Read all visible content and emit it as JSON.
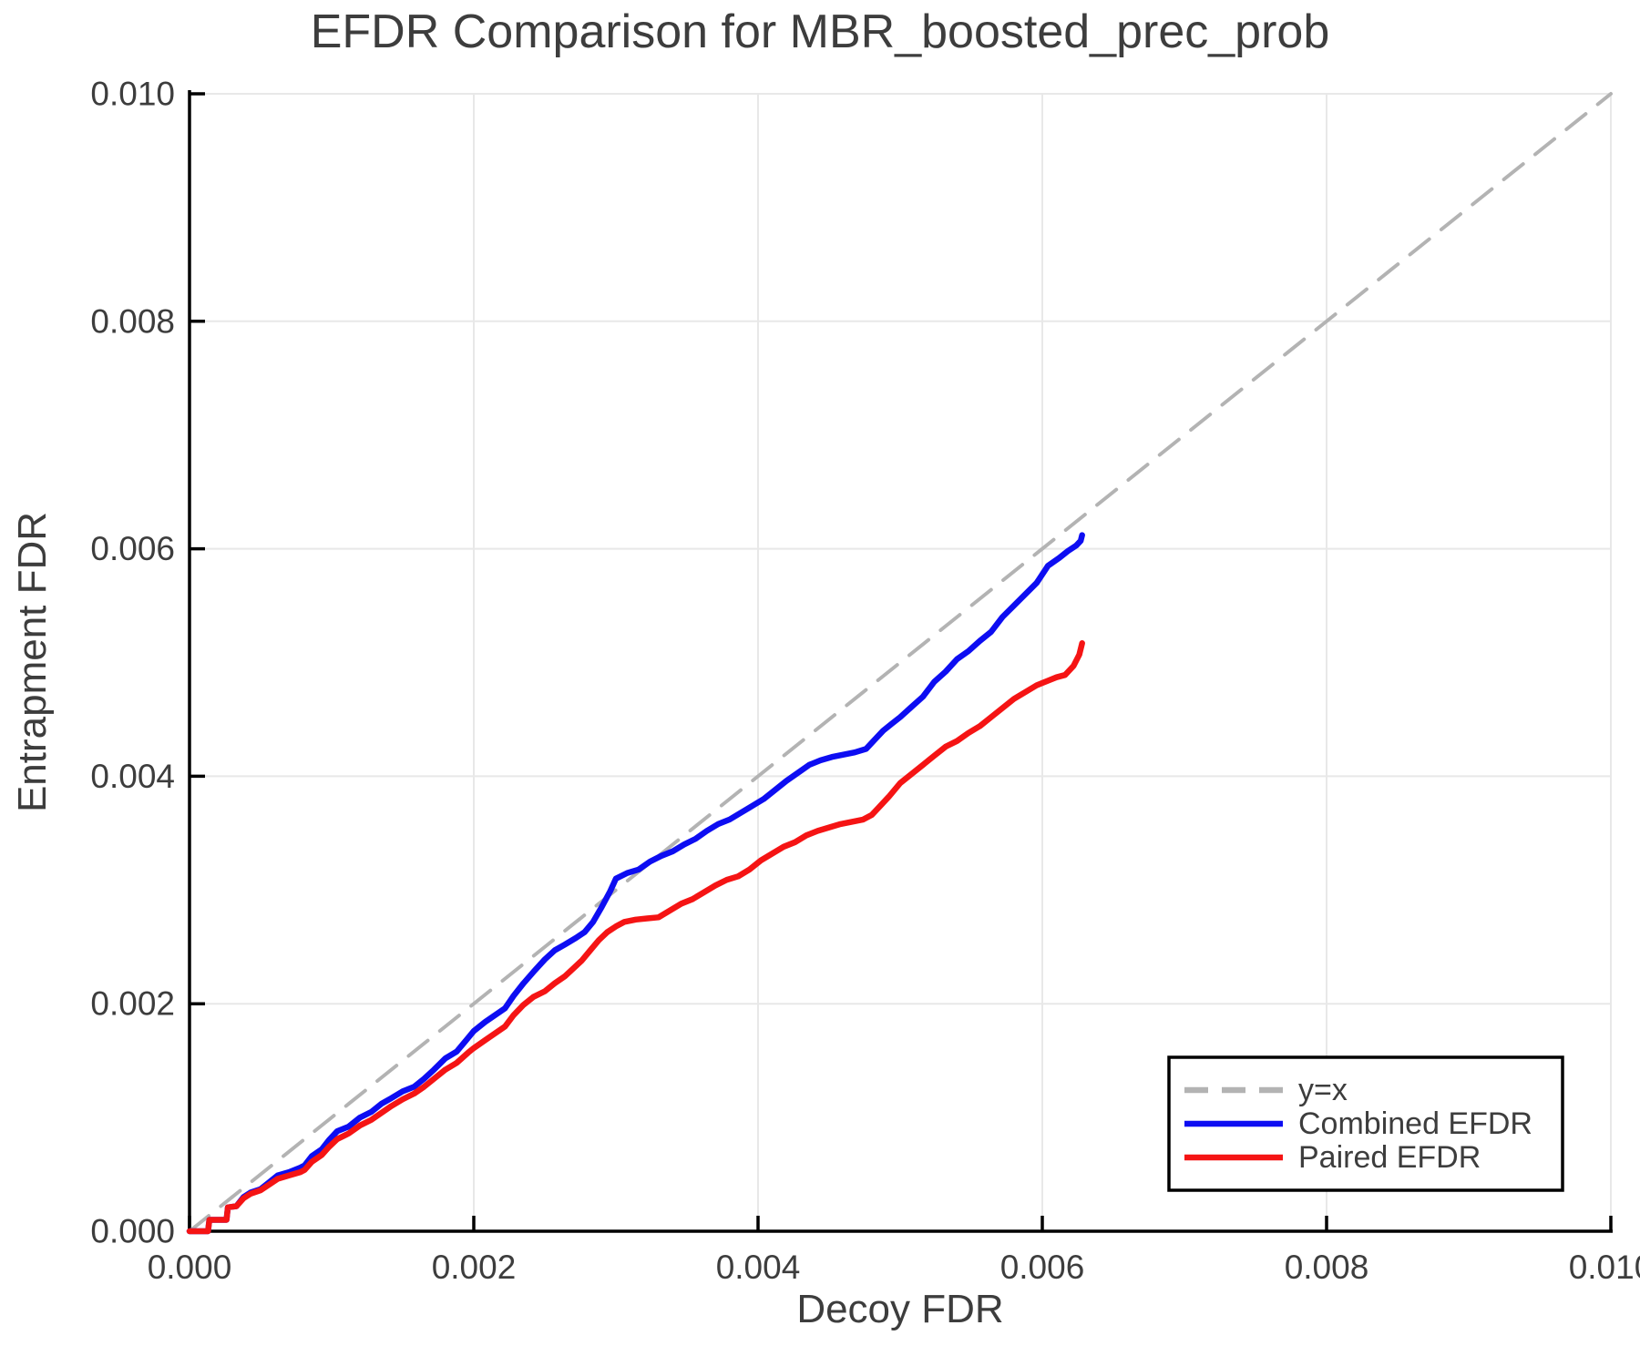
{
  "chart_data": {
    "type": "line",
    "title": "EFDR Comparison for MBR_boosted_prec_prob",
    "xlabel": "Decoy FDR",
    "ylabel": "Entrapment FDR",
    "xlim": [
      0.0,
      0.01
    ],
    "ylim": [
      0.0,
      0.01
    ],
    "x_ticks": [
      0.0,
      0.002,
      0.004,
      0.006,
      0.008,
      0.01
    ],
    "y_ticks": [
      0.0,
      0.002,
      0.004,
      0.006,
      0.008,
      0.01
    ],
    "tick_decimals": 3,
    "grid": true,
    "colors": {
      "grid": "#e8e8e8",
      "spine": "#000000",
      "text": "#3d3d3d"
    },
    "legend": {
      "position": "lower right"
    },
    "series": [
      {
        "name": "y=x",
        "style": "dashed",
        "color": "#b3b3b3",
        "points": [
          [
            0.0,
            0.0
          ],
          [
            0.01,
            0.01
          ]
        ]
      },
      {
        "name": "Combined EFDR",
        "style": "solid",
        "color": "#0d0df2",
        "points": [
          [
            0.0,
            0.0
          ],
          [
            0.00013,
            0.0
          ],
          [
            0.00014,
            0.0001
          ],
          [
            0.00026,
            0.0001
          ],
          [
            0.00027,
            0.00021
          ],
          [
            0.00033,
            0.00022
          ],
          [
            0.00038,
            0.0003
          ],
          [
            0.00043,
            0.00034
          ],
          [
            0.0005,
            0.00037
          ],
          [
            0.00056,
            0.00043
          ],
          [
            0.00062,
            0.00049
          ],
          [
            0.0007,
            0.00052
          ],
          [
            0.00078,
            0.00056
          ],
          [
            0.00081,
            0.00058
          ],
          [
            0.00086,
            0.00066
          ],
          [
            0.00093,
            0.00072
          ],
          [
            0.00098,
            0.0008
          ],
          [
            0.00104,
            0.00088
          ],
          [
            0.00112,
            0.00092
          ],
          [
            0.0012,
            0.001
          ],
          [
            0.00128,
            0.00105
          ],
          [
            0.00135,
            0.00112
          ],
          [
            0.00142,
            0.00117
          ],
          [
            0.0015,
            0.00123
          ],
          [
            0.00158,
            0.00127
          ],
          [
            0.00165,
            0.00134
          ],
          [
            0.00172,
            0.00142
          ],
          [
            0.0018,
            0.00152
          ],
          [
            0.00188,
            0.00158
          ],
          [
            0.00196,
            0.0017
          ],
          [
            0.002,
            0.00176
          ],
          [
            0.00208,
            0.00184
          ],
          [
            0.00215,
            0.0019
          ],
          [
            0.00222,
            0.00196
          ],
          [
            0.00228,
            0.00207
          ],
          [
            0.00235,
            0.00218
          ],
          [
            0.00242,
            0.00228
          ],
          [
            0.0025,
            0.00239
          ],
          [
            0.00257,
            0.00247
          ],
          [
            0.00264,
            0.00252
          ],
          [
            0.00272,
            0.00258
          ],
          [
            0.00278,
            0.00263
          ],
          [
            0.00284,
            0.00272
          ],
          [
            0.0029,
            0.00285
          ],
          [
            0.00296,
            0.00299
          ],
          [
            0.003,
            0.0031
          ],
          [
            0.00308,
            0.00315
          ],
          [
            0.00316,
            0.00318
          ],
          [
            0.00324,
            0.00325
          ],
          [
            0.00332,
            0.0033
          ],
          [
            0.0034,
            0.00334
          ],
          [
            0.00348,
            0.0034
          ],
          [
            0.00356,
            0.00345
          ],
          [
            0.00364,
            0.00352
          ],
          [
            0.00372,
            0.00358
          ],
          [
            0.0038,
            0.00362
          ],
          [
            0.00388,
            0.00368
          ],
          [
            0.00396,
            0.00374
          ],
          [
            0.00404,
            0.0038
          ],
          [
            0.00412,
            0.00388
          ],
          [
            0.0042,
            0.00396
          ],
          [
            0.00428,
            0.00403
          ],
          [
            0.00436,
            0.0041
          ],
          [
            0.00444,
            0.00414
          ],
          [
            0.00452,
            0.00417
          ],
          [
            0.0046,
            0.00419
          ],
          [
            0.00468,
            0.00421
          ],
          [
            0.00476,
            0.00424
          ],
          [
            0.00482,
            0.00432
          ],
          [
            0.00488,
            0.0044
          ],
          [
            0.00494,
            0.00446
          ],
          [
            0.005,
            0.00452
          ],
          [
            0.00508,
            0.00461
          ],
          [
            0.00516,
            0.0047
          ],
          [
            0.00524,
            0.00483
          ],
          [
            0.00532,
            0.00492
          ],
          [
            0.0054,
            0.00503
          ],
          [
            0.00548,
            0.0051
          ],
          [
            0.00556,
            0.00519
          ],
          [
            0.00564,
            0.00527
          ],
          [
            0.00572,
            0.0054
          ],
          [
            0.0058,
            0.0055
          ],
          [
            0.00588,
            0.0056
          ],
          [
            0.00596,
            0.0057
          ],
          [
            0.00604,
            0.00585
          ],
          [
            0.00612,
            0.00592
          ],
          [
            0.00618,
            0.00598
          ],
          [
            0.00624,
            0.00603
          ],
          [
            0.00627,
            0.00607
          ],
          [
            0.00628,
            0.00612
          ]
        ]
      },
      {
        "name": "Paired EFDR",
        "style": "solid",
        "color": "#f51414",
        "points": [
          [
            0.0,
            0.0
          ],
          [
            0.00013,
            0.0
          ],
          [
            0.00014,
            0.0001
          ],
          [
            0.00026,
            0.0001
          ],
          [
            0.00027,
            0.00021
          ],
          [
            0.00033,
            0.00022
          ],
          [
            0.00038,
            0.00029
          ],
          [
            0.00043,
            0.00033
          ],
          [
            0.0005,
            0.00036
          ],
          [
            0.00056,
            0.00041
          ],
          [
            0.00062,
            0.00046
          ],
          [
            0.0007,
            0.00049
          ],
          [
            0.00078,
            0.00052
          ],
          [
            0.00081,
            0.00054
          ],
          [
            0.00086,
            0.00061
          ],
          [
            0.00093,
            0.00067
          ],
          [
            0.00098,
            0.00074
          ],
          [
            0.00104,
            0.00081
          ],
          [
            0.00112,
            0.00086
          ],
          [
            0.0012,
            0.00093
          ],
          [
            0.00128,
            0.00098
          ],
          [
            0.00135,
            0.00104
          ],
          [
            0.00142,
            0.0011
          ],
          [
            0.0015,
            0.00116
          ],
          [
            0.00158,
            0.00121
          ],
          [
            0.00165,
            0.00127
          ],
          [
            0.00172,
            0.00134
          ],
          [
            0.0018,
            0.00142
          ],
          [
            0.00188,
            0.00148
          ],
          [
            0.00196,
            0.00157
          ],
          [
            0.002,
            0.00161
          ],
          [
            0.00208,
            0.00168
          ],
          [
            0.00215,
            0.00174
          ],
          [
            0.00222,
            0.0018
          ],
          [
            0.00228,
            0.0019
          ],
          [
            0.00235,
            0.00199
          ],
          [
            0.00242,
            0.00206
          ],
          [
            0.0025,
            0.00211
          ],
          [
            0.00257,
            0.00218
          ],
          [
            0.00264,
            0.00224
          ],
          [
            0.0027,
            0.00231
          ],
          [
            0.00276,
            0.00238
          ],
          [
            0.00282,
            0.00247
          ],
          [
            0.00288,
            0.00256
          ],
          [
            0.00294,
            0.00263
          ],
          [
            0.003,
            0.00268
          ],
          [
            0.00306,
            0.00272
          ],
          [
            0.00314,
            0.00274
          ],
          [
            0.00322,
            0.00275
          ],
          [
            0.0033,
            0.00276
          ],
          [
            0.00338,
            0.00282
          ],
          [
            0.00346,
            0.00288
          ],
          [
            0.00354,
            0.00292
          ],
          [
            0.00362,
            0.00298
          ],
          [
            0.0037,
            0.00304
          ],
          [
            0.00378,
            0.00309
          ],
          [
            0.00386,
            0.00312
          ],
          [
            0.00394,
            0.00318
          ],
          [
            0.00402,
            0.00326
          ],
          [
            0.0041,
            0.00332
          ],
          [
            0.00418,
            0.00338
          ],
          [
            0.00426,
            0.00342
          ],
          [
            0.00434,
            0.00348
          ],
          [
            0.00442,
            0.00352
          ],
          [
            0.0045,
            0.00355
          ],
          [
            0.00458,
            0.00358
          ],
          [
            0.00466,
            0.0036
          ],
          [
            0.00474,
            0.00362
          ],
          [
            0.0048,
            0.00366
          ],
          [
            0.00486,
            0.00374
          ],
          [
            0.00492,
            0.00382
          ],
          [
            0.005,
            0.00394
          ],
          [
            0.00508,
            0.00402
          ],
          [
            0.00516,
            0.0041
          ],
          [
            0.00524,
            0.00418
          ],
          [
            0.00532,
            0.00426
          ],
          [
            0.0054,
            0.00431
          ],
          [
            0.00548,
            0.00438
          ],
          [
            0.00556,
            0.00444
          ],
          [
            0.00564,
            0.00452
          ],
          [
            0.00572,
            0.0046
          ],
          [
            0.0058,
            0.00468
          ],
          [
            0.00588,
            0.00474
          ],
          [
            0.00596,
            0.0048
          ],
          [
            0.00604,
            0.00484
          ],
          [
            0.0061,
            0.00487
          ],
          [
            0.00616,
            0.00489
          ],
          [
            0.00622,
            0.00497
          ],
          [
            0.00626,
            0.00507
          ],
          [
            0.00628,
            0.00517
          ]
        ]
      }
    ]
  }
}
